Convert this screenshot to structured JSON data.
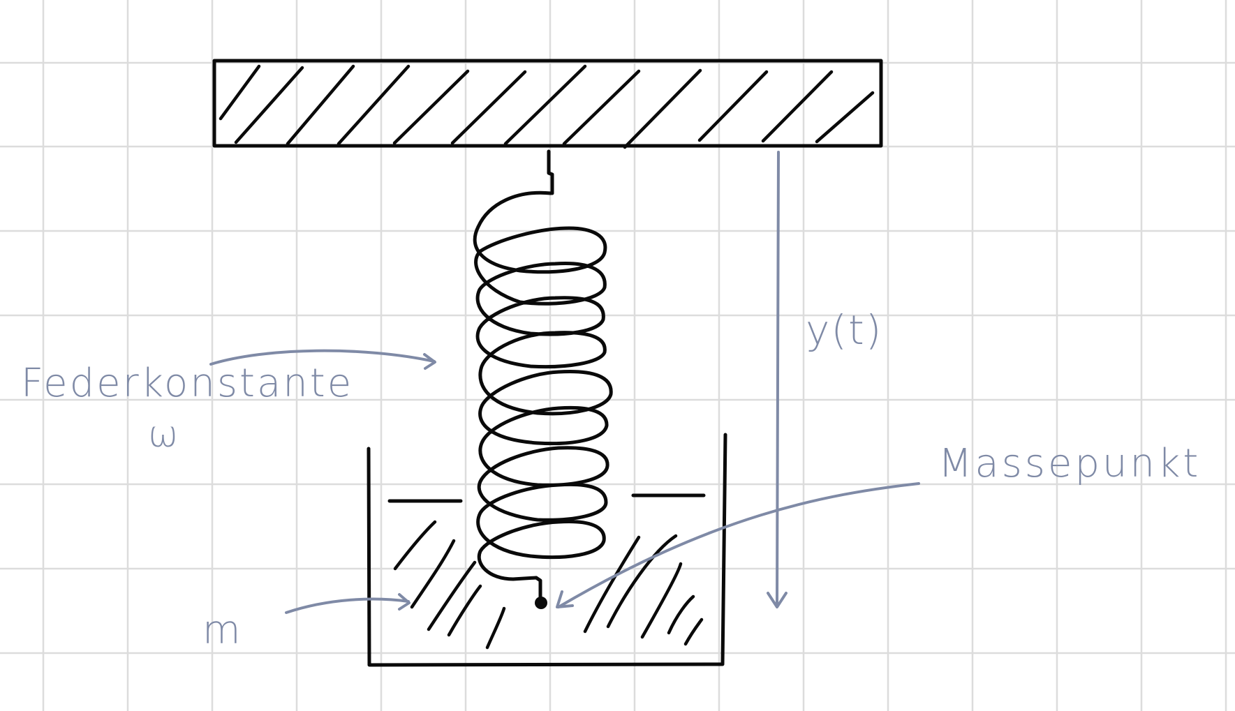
{
  "diagram": {
    "description_labels": {
      "spring_constant": "Federkonstante",
      "spring_constant_symbol": "ω",
      "mass": "m",
      "mass_point": "Massepunkt",
      "displacement": "y(t)"
    },
    "colors": {
      "grid": "#dcdcdc",
      "ink": "#0a0a0a",
      "annotation": "#7f8aa6",
      "paper": "#ffffff"
    }
  }
}
